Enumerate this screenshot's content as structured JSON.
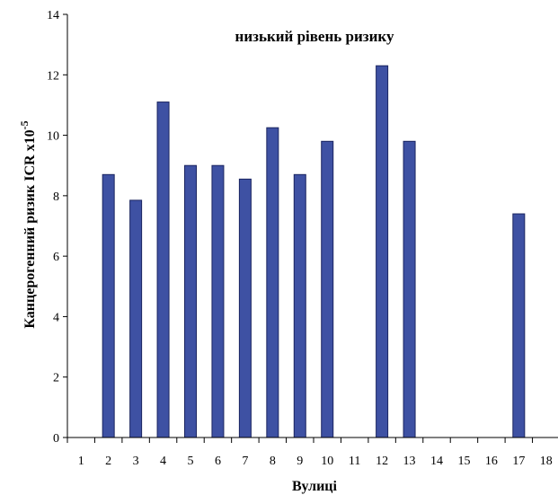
{
  "chart_data": {
    "type": "bar",
    "title": "низький рівень ризику",
    "xlabel": "Вулиці",
    "ylabel": "Канцерогенний ризик ICR х10",
    "ylabel_exponent": "-5",
    "categories": [
      "1",
      "2",
      "3",
      "4",
      "5",
      "6",
      "7",
      "8",
      "9",
      "10",
      "11",
      "12",
      "13",
      "14",
      "15",
      "16",
      "17",
      "18"
    ],
    "values": [
      null,
      8.7,
      7.85,
      11.1,
      9.0,
      9.0,
      8.55,
      10.25,
      8.7,
      9.8,
      null,
      12.3,
      9.8,
      null,
      null,
      null,
      7.4,
      null
    ],
    "ylim": [
      0,
      14
    ],
    "yticks": [
      "0",
      "2",
      "4",
      "6",
      "8",
      "10",
      "12",
      "14"
    ],
    "grid": false,
    "legend": "none",
    "colors": {
      "bar_fill": "#3e51a3",
      "bar_stroke": "#1a2460"
    }
  }
}
